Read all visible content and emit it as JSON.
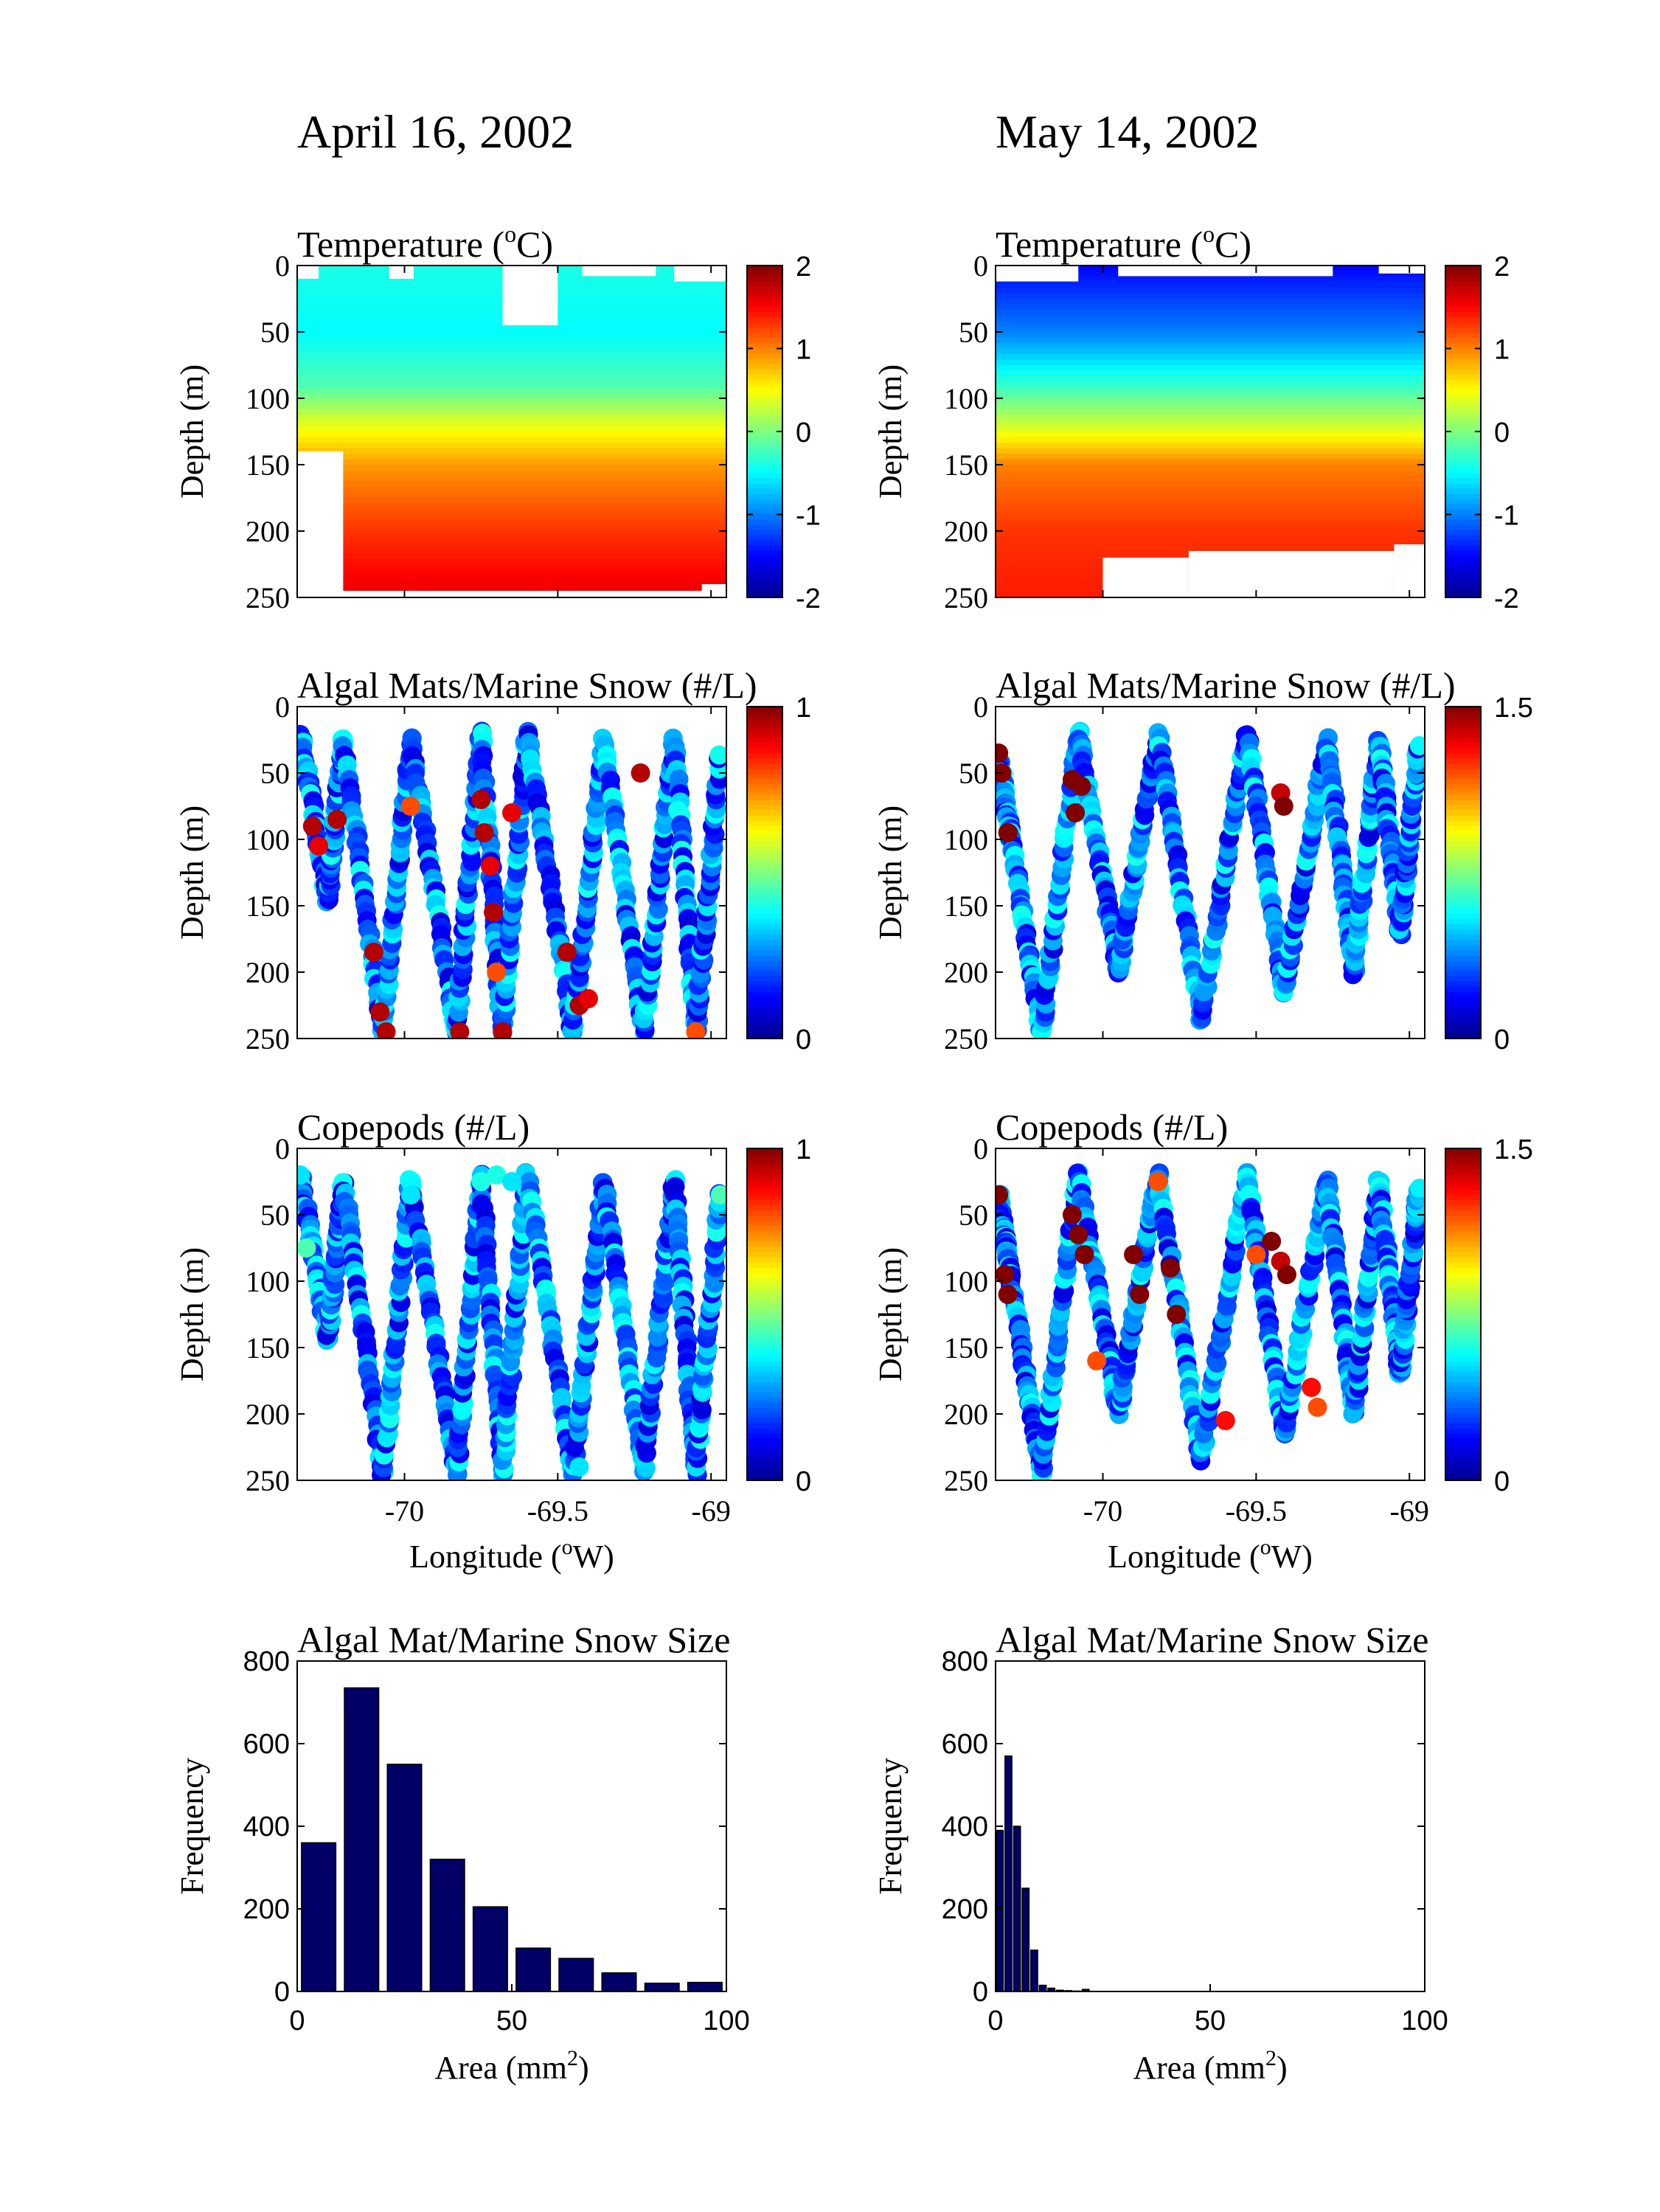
{
  "figure": {
    "col_titles": [
      "April 16, 2002",
      "May 14, 2002"
    ]
  },
  "colormap": [
    "#00008f",
    "#0000ff",
    "#0080ff",
    "#00ffff",
    "#80ff80",
    "#ffff00",
    "#ff8000",
    "#ff0000",
    "#800000"
  ],
  "chart_data": [
    {
      "id": "temp-apr",
      "type": "heatmap",
      "col": 0,
      "row": 0,
      "title": "Temperature (",
      "title_sup": "o",
      "title_suffix": "C)",
      "ylabel": "Depth (m)",
      "xlim": [
        -70.35,
        -68.95
      ],
      "ylim": [
        250,
        0
      ],
      "yticks": [
        "0",
        "50",
        "100",
        "150",
        "200",
        "250"
      ],
      "clim": [
        -2,
        2
      ],
      "cbar_ticks": [
        "2",
        "1",
        "0",
        "-1",
        "-2"
      ],
      "depth_profile": [
        [
          0,
          -0.4
        ],
        [
          50,
          -0.5
        ],
        [
          90,
          -0.2
        ],
        [
          120,
          0.4
        ],
        [
          150,
          0.9
        ],
        [
          200,
          1.3
        ],
        [
          250,
          1.6
        ]
      ]
    },
    {
      "id": "temp-may",
      "type": "heatmap",
      "col": 1,
      "row": 0,
      "title": "Temperature (",
      "title_sup": "o",
      "title_suffix": "C)",
      "ylabel": "Depth (m)",
      "xlim": [
        -70.35,
        -68.95
      ],
      "ylim": [
        250,
        0
      ],
      "yticks": [
        "0",
        "50",
        "100",
        "150",
        "200",
        "250"
      ],
      "clim": [
        -2,
        2
      ],
      "cbar_ticks": [
        "2",
        "1",
        "0",
        "-1",
        "-2"
      ],
      "depth_profile": [
        [
          0,
          -1.5
        ],
        [
          50,
          -1.0
        ],
        [
          90,
          -0.3
        ],
        [
          120,
          0.3
        ],
        [
          150,
          1.0
        ],
        [
          200,
          1.3
        ],
        [
          250,
          1.4
        ]
      ]
    },
    {
      "id": "algal-apr",
      "type": "scatter",
      "col": 0,
      "row": 1,
      "title": "Algal Mats/Marine Snow (#/L)",
      "ylabel": "Depth (m)",
      "xlim": [
        -70.35,
        -68.95
      ],
      "ylim": [
        250,
        0
      ],
      "yticks": [
        "0",
        "50",
        "100",
        "150",
        "200",
        "250"
      ],
      "clim": [
        0,
        1
      ],
      "cbar_ticks": [
        "1",
        "0"
      ],
      "tows": [
        [
          -70.34,
          20,
          -70.25,
          145
        ],
        [
          -70.25,
          145,
          -70.2,
          25
        ],
        [
          -70.2,
          25,
          -70.07,
          245
        ],
        [
          -70.07,
          245,
          -69.98,
          25
        ],
        [
          -69.98,
          25,
          -69.83,
          245
        ],
        [
          -69.83,
          245,
          -69.75,
          20
        ],
        [
          -69.75,
          20,
          -69.68,
          245
        ],
        [
          -69.68,
          245,
          -69.6,
          20
        ],
        [
          -69.6,
          20,
          -69.45,
          245
        ],
        [
          -69.45,
          245,
          -69.35,
          25
        ],
        [
          -69.35,
          25,
          -69.22,
          245
        ],
        [
          -69.22,
          245,
          -69.12,
          25
        ],
        [
          -69.12,
          25,
          -69.05,
          245
        ],
        [
          -69.05,
          245,
          -68.97,
          35
        ]
      ],
      "highlights": [
        [
          -70.3,
          90,
          0.95
        ],
        [
          -70.28,
          105,
          0.9
        ],
        [
          -70.22,
          85,
          0.95
        ],
        [
          -70.1,
          185,
          0.95
        ],
        [
          -70.08,
          230,
          0.95
        ],
        [
          -70.06,
          245,
          0.95
        ],
        [
          -69.98,
          75,
          0.8
        ],
        [
          -69.82,
          245,
          0.95
        ],
        [
          -69.75,
          70,
          0.95
        ],
        [
          -69.74,
          95,
          0.95
        ],
        [
          -69.72,
          120,
          0.9
        ],
        [
          -69.71,
          155,
          0.95
        ],
        [
          -69.7,
          200,
          0.8
        ],
        [
          -69.68,
          245,
          0.95
        ],
        [
          -69.65,
          80,
          0.9
        ],
        [
          -69.47,
          185,
          0.95
        ],
        [
          -69.43,
          225,
          0.95
        ],
        [
          -69.4,
          220,
          0.9
        ],
        [
          -69.23,
          50,
          0.95
        ],
        [
          -69.05,
          245,
          0.8
        ]
      ]
    },
    {
      "id": "algal-may",
      "type": "scatter",
      "col": 1,
      "row": 1,
      "title": "Algal Mats/Marine Snow (#/L)",
      "ylabel": "Depth (m)",
      "xlim": [
        -70.35,
        -68.95
      ],
      "ylim": [
        250,
        0
      ],
      "yticks": [
        "0",
        "50",
        "100",
        "150",
        "200",
        "250"
      ],
      "clim": [
        0,
        1.5
      ],
      "cbar_ticks": [
        "1.5",
        "0"
      ],
      "tows": [
        [
          -70.34,
          35,
          -70.3,
          100
        ],
        [
          -70.3,
          100,
          -70.2,
          245
        ],
        [
          -70.2,
          245,
          -70.08,
          20
        ],
        [
          -70.08,
          20,
          -69.95,
          200
        ],
        [
          -69.95,
          200,
          -69.82,
          20
        ],
        [
          -69.82,
          20,
          -69.68,
          235
        ],
        [
          -69.68,
          235,
          -69.53,
          20
        ],
        [
          -69.53,
          20,
          -69.41,
          215
        ],
        [
          -69.41,
          215,
          -69.27,
          25
        ],
        [
          -69.27,
          25,
          -69.18,
          200
        ],
        [
          -69.18,
          200,
          -69.1,
          25
        ],
        [
          -69.1,
          25,
          -69.03,
          170
        ],
        [
          -69.03,
          170,
          -68.97,
          30
        ]
      ],
      "highlights": [
        [
          -70.34,
          35,
          1.5
        ],
        [
          -70.33,
          50,
          1.5
        ],
        [
          -70.31,
          95,
          1.5
        ],
        [
          -70.1,
          55,
          1.5
        ],
        [
          -70.09,
          80,
          1.5
        ],
        [
          -70.07,
          60,
          1.5
        ],
        [
          -69.42,
          65,
          1.4
        ],
        [
          -69.41,
          75,
          1.5
        ]
      ]
    },
    {
      "id": "cope-apr",
      "type": "scatter",
      "col": 0,
      "row": 2,
      "title": "Copepods (#/L)",
      "ylabel": "Depth (m)",
      "xlabel": "Longitude (",
      "xlabel_sup": "o",
      "xlabel_suffix": "W)",
      "xlim": [
        -70.35,
        -68.95
      ],
      "xticks": [
        -70,
        -69.5,
        -69
      ],
      "xtick_labels": [
        "-70",
        "-69.5",
        "-69"
      ],
      "ylim": [
        250,
        0
      ],
      "yticks": [
        "0",
        "50",
        "100",
        "150",
        "200",
        "250"
      ],
      "clim": [
        0,
        1
      ],
      "cbar_ticks": [
        "1",
        "0"
      ],
      "tows": [
        [
          -70.34,
          20,
          -70.25,
          145
        ],
        [
          -70.25,
          145,
          -70.2,
          25
        ],
        [
          -70.2,
          25,
          -70.07,
          245
        ],
        [
          -70.07,
          245,
          -69.98,
          25
        ],
        [
          -69.98,
          25,
          -69.83,
          245
        ],
        [
          -69.83,
          245,
          -69.75,
          20
        ],
        [
          -69.75,
          20,
          -69.68,
          245
        ],
        [
          -69.68,
          245,
          -69.6,
          20
        ],
        [
          -69.6,
          20,
          -69.45,
          245
        ],
        [
          -69.45,
          245,
          -69.35,
          25
        ],
        [
          -69.35,
          25,
          -69.22,
          245
        ],
        [
          -69.22,
          245,
          -69.12,
          25
        ],
        [
          -69.12,
          25,
          -69.05,
          245
        ],
        [
          -69.05,
          245,
          -68.97,
          35
        ]
      ],
      "highlights": [
        [
          -70.34,
          20,
          0.35
        ],
        [
          -70.32,
          75,
          0.45
        ],
        [
          -69.98,
          35,
          0.35
        ],
        [
          -69.75,
          25,
          0.4
        ],
        [
          -69.7,
          20,
          0.4
        ],
        [
          -69.65,
          25,
          0.35
        ],
        [
          -69.43,
          240,
          0.35
        ],
        [
          -68.97,
          35,
          0.45
        ]
      ]
    },
    {
      "id": "cope-may",
      "type": "scatter",
      "col": 1,
      "row": 2,
      "title": "Copepods (#/L)",
      "ylabel": "Depth (m)",
      "xlabel": "Longitude (",
      "xlabel_sup": "o",
      "xlabel_suffix": "W)",
      "xlim": [
        -70.35,
        -68.95
      ],
      "xticks": [
        -70,
        -69.5,
        -69
      ],
      "xtick_labels": [
        "-70",
        "-69.5",
        "-69"
      ],
      "ylim": [
        250,
        0
      ],
      "yticks": [
        "0",
        "50",
        "100",
        "150",
        "200",
        "250"
      ],
      "clim": [
        0,
        1.5
      ],
      "cbar_ticks": [
        "1.5",
        "0"
      ],
      "tows": [
        [
          -70.34,
          35,
          -70.3,
          100
        ],
        [
          -70.3,
          100,
          -70.2,
          245
        ],
        [
          -70.2,
          245,
          -70.08,
          20
        ],
        [
          -70.08,
          20,
          -69.95,
          200
        ],
        [
          -69.95,
          200,
          -69.82,
          20
        ],
        [
          -69.82,
          20,
          -69.68,
          235
        ],
        [
          -69.68,
          235,
          -69.53,
          20
        ],
        [
          -69.53,
          20,
          -69.41,
          215
        ],
        [
          -69.41,
          215,
          -69.27,
          25
        ],
        [
          -69.27,
          25,
          -69.18,
          200
        ],
        [
          -69.18,
          200,
          -69.1,
          25
        ],
        [
          -69.1,
          25,
          -69.03,
          170
        ],
        [
          -69.03,
          170,
          -68.97,
          30
        ]
      ],
      "highlights": [
        [
          -70.34,
          35,
          1.5
        ],
        [
          -70.32,
          95,
          1.5
        ],
        [
          -70.31,
          110,
          1.5
        ],
        [
          -70.1,
          50,
          1.5
        ],
        [
          -70.08,
          65,
          1.5
        ],
        [
          -70.06,
          80,
          1.5
        ],
        [
          -70.02,
          160,
          1.2
        ],
        [
          -69.9,
          80,
          1.5
        ],
        [
          -69.88,
          110,
          1.5
        ],
        [
          -69.82,
          25,
          1.2
        ],
        [
          -69.78,
          90,
          1.5
        ],
        [
          -69.76,
          125,
          1.5
        ],
        [
          -69.6,
          205,
          1.3
        ],
        [
          -69.5,
          80,
          1.2
        ],
        [
          -69.45,
          70,
          1.5
        ],
        [
          -69.42,
          85,
          1.4
        ],
        [
          -69.4,
          95,
          1.5
        ],
        [
          -69.32,
          180,
          1.3
        ],
        [
          -69.3,
          195,
          1.2
        ]
      ]
    },
    {
      "id": "hist-apr",
      "type": "bar",
      "col": 0,
      "row": 3,
      "title": "Algal Mat/Marine Snow Size",
      "ylabel": "Frequency",
      "xlabel": "Area (mm",
      "xlabel_sup": "2",
      "xlabel_suffix": ")",
      "xlim": [
        0,
        100
      ],
      "xticks": [
        0,
        50,
        100
      ],
      "xtick_labels": [
        "0",
        "50",
        "100"
      ],
      "ylim": [
        0,
        800
      ],
      "yticks": [
        0,
        200,
        400,
        600,
        800
      ],
      "ytick_labels": [
        "0",
        "200",
        "400",
        "600",
        "800"
      ],
      "bin_width": 10,
      "centers": [
        5,
        15,
        25,
        35,
        45,
        55,
        65,
        75,
        85,
        95
      ],
      "values": [
        360,
        735,
        550,
        320,
        205,
        105,
        80,
        45,
        20,
        22
      ],
      "color": "#000066"
    },
    {
      "id": "hist-may",
      "type": "bar",
      "col": 1,
      "row": 3,
      "title": "Algal Mat/Marine Snow Size",
      "ylabel": "Frequency",
      "xlabel": "Area (mm",
      "xlabel_sup": "2",
      "xlabel_suffix": ")",
      "xlim": [
        0,
        100
      ],
      "xticks": [
        0,
        50,
        100
      ],
      "xtick_labels": [
        "0",
        "50",
        "100"
      ],
      "ylim": [
        0,
        800
      ],
      "yticks": [
        0,
        200,
        400,
        600,
        800
      ],
      "ytick_labels": [
        "0",
        "200",
        "400",
        "600",
        "800"
      ],
      "bin_width": 2,
      "centers": [
        1,
        3,
        5,
        7,
        9,
        11,
        13,
        15,
        17,
        19,
        21
      ],
      "values": [
        390,
        570,
        400,
        250,
        100,
        15,
        8,
        3,
        2,
        1,
        5
      ],
      "color": "#000066"
    }
  ]
}
